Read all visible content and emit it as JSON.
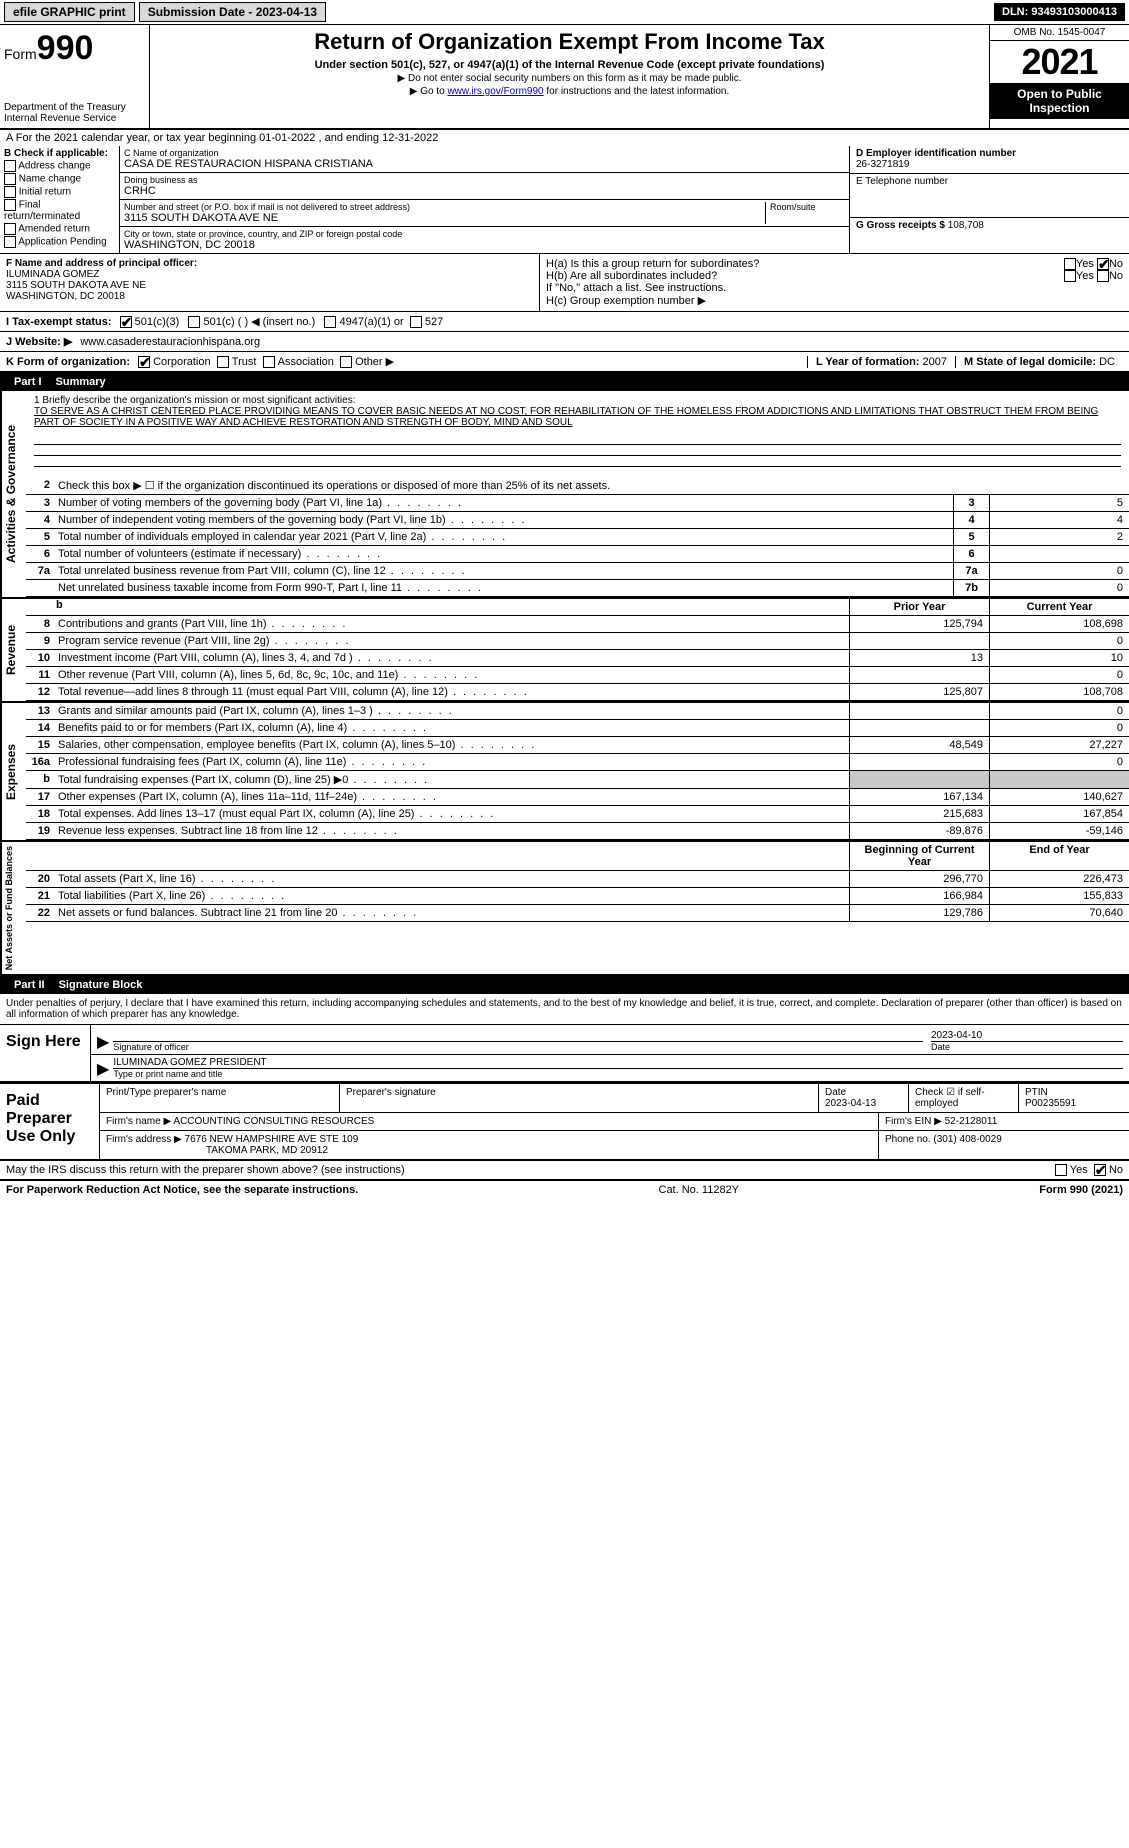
{
  "meta": {
    "type": "document",
    "title": "IRS Form 990 (2021)",
    "background_color": "#ffffff",
    "text_color": "#000000",
    "accent_black": "#000000",
    "link_color": "#0000cc",
    "grey_fill": "#c8c8c8",
    "button_grey": "#d8d8d8",
    "font_family": "Arial",
    "base_fontsize": 11
  },
  "topbar": {
    "efile": "efile GRAPHIC print",
    "submission_label": "Submission Date - 2023-04-13",
    "dln": "DLN: 93493103000413"
  },
  "header": {
    "form_label": "Form",
    "form_number": "990",
    "dept": "Department of the Treasury",
    "irs": "Internal Revenue Service",
    "title": "Return of Organization Exempt From Income Tax",
    "subtitle": "Under section 501(c), 527, or 4947(a)(1) of the Internal Revenue Code (except private foundations)",
    "note_ssn": "▶ Do not enter social security numbers on this form as it may be made public.",
    "note_link_prefix": "▶ Go to ",
    "note_link": "www.irs.gov/Form990",
    "note_link_suffix": " for instructions and the latest information.",
    "omb": "OMB No. 1545-0047",
    "year": "2021",
    "open": "Open to Public Inspection"
  },
  "period": {
    "line": "A For the 2021 calendar year, or tax year beginning 01-01-2022   , and ending 12-31-2022"
  },
  "box_b": {
    "label": "B Check if applicable:",
    "items": [
      "Address change",
      "Name change",
      "Initial return",
      "Final return/terminated",
      "Amended return",
      "Application Pending"
    ]
  },
  "box_c": {
    "name_label": "C Name of organization",
    "name": "CASA DE RESTAURACION HISPANA CRISTIANA",
    "dba_label": "Doing business as",
    "dba": "CRHC",
    "street_label": "Number and street (or P.O. box if mail is not delivered to street address)",
    "room_label": "Room/suite",
    "street": "3115 SOUTH DAKOTA AVE NE",
    "city_label": "City or town, state or province, country, and ZIP or foreign postal code",
    "city": "WASHINGTON, DC  20018"
  },
  "box_d": {
    "label": "D Employer identification number",
    "value": "26-3271819"
  },
  "box_e": {
    "label": "E Telephone number",
    "value": ""
  },
  "box_g": {
    "label": "G Gross receipts $",
    "value": "108,708"
  },
  "box_f": {
    "label": "F  Name and address of principal officer:",
    "name": "ILUMINADA GOMEZ",
    "addr1": "3115 SOUTH DAKOTA AVE NE",
    "addr2": "WASHINGTON, DC  20018"
  },
  "box_h": {
    "a_label": "H(a)  Is this a group return for subordinates?",
    "a_yes": "Yes",
    "a_no": "No",
    "b_label": "H(b)  Are all subordinates included?",
    "b_yes": "Yes",
    "b_no": "No",
    "b_note": "If \"No,\" attach a list. See instructions.",
    "c_label": "H(c)  Group exemption number ▶"
  },
  "row_i": {
    "label": "I  Tax-exempt status:",
    "opt1": "501(c)(3)",
    "opt2": "501(c) (   ) ◀ (insert no.)",
    "opt3": "4947(a)(1) or",
    "opt4": "527"
  },
  "row_j": {
    "label": "J  Website: ▶",
    "value": "www.casaderestauracionhispana.org"
  },
  "row_k": {
    "label": "K Form of organization:",
    "opts": [
      "Corporation",
      "Trust",
      "Association",
      "Other ▶"
    ],
    "checked": 0
  },
  "row_l": {
    "label": "L Year of formation:",
    "value": "2007"
  },
  "row_m": {
    "label": "M State of legal domicile:",
    "value": "DC"
  },
  "parts": {
    "p1": "Part I",
    "p1t": "Summary",
    "p2": "Part II",
    "p2t": "Signature Block"
  },
  "mission": {
    "label": "1  Briefly describe the organization's mission or most significant activities:",
    "text": "TO SERVE AS A CHRIST CENTERED PLACE PROVIDING MEANS TO COVER BASIC NEEDS AT NO COST, FOR REHABILITATION OF THE HOMELESS FROM ADDICTIONS AND LIMITATIONS THAT OBSTRUCT THEM FROM BEING PART OF SOCIETY IN A POSITIVE WAY AND ACHIEVE RESTORATION AND STRENGTH OF BODY, MIND AND SOUL"
  },
  "governance": {
    "l2": "Check this box ▶ ☐ if the organization discontinued its operations or disposed of more than 25% of its net assets.",
    "rows": [
      {
        "n": "3",
        "t": "Number of voting members of the governing body (Part VI, line 1a)",
        "b": "3",
        "v": "5"
      },
      {
        "n": "4",
        "t": "Number of independent voting members of the governing body (Part VI, line 1b)",
        "b": "4",
        "v": "4"
      },
      {
        "n": "5",
        "t": "Total number of individuals employed in calendar year 2021 (Part V, line 2a)",
        "b": "5",
        "v": "2"
      },
      {
        "n": "6",
        "t": "Total number of volunteers (estimate if necessary)",
        "b": "6",
        "v": ""
      },
      {
        "n": "7a",
        "t": "Total unrelated business revenue from Part VIII, column (C), line 12",
        "b": "7a",
        "v": "0"
      },
      {
        "n": "",
        "t": "Net unrelated business taxable income from Form 990-T, Part I, line 11",
        "b": "7b",
        "v": "0"
      }
    ]
  },
  "col_headers": {
    "spacer": "b",
    "prior": "Prior Year",
    "current": "Current Year",
    "boy": "Beginning of Current Year",
    "eoy": "End of Year"
  },
  "revenue": [
    {
      "n": "8",
      "t": "Contributions and grants (Part VIII, line 1h)",
      "p": "125,794",
      "c": "108,698"
    },
    {
      "n": "9",
      "t": "Program service revenue (Part VIII, line 2g)",
      "p": "",
      "c": "0"
    },
    {
      "n": "10",
      "t": "Investment income (Part VIII, column (A), lines 3, 4, and 7d )",
      "p": "13",
      "c": "10"
    },
    {
      "n": "11",
      "t": "Other revenue (Part VIII, column (A), lines 5, 6d, 8c, 9c, 10c, and 11e)",
      "p": "",
      "c": "0"
    },
    {
      "n": "12",
      "t": "Total revenue—add lines 8 through 11 (must equal Part VIII, column (A), line 12)",
      "p": "125,807",
      "c": "108,708"
    }
  ],
  "expenses": [
    {
      "n": "13",
      "t": "Grants and similar amounts paid (Part IX, column (A), lines 1–3 )",
      "p": "",
      "c": "0"
    },
    {
      "n": "14",
      "t": "Benefits paid to or for members (Part IX, column (A), line 4)",
      "p": "",
      "c": "0"
    },
    {
      "n": "15",
      "t": "Salaries, other compensation, employee benefits (Part IX, column (A), lines 5–10)",
      "p": "48,549",
      "c": "27,227"
    },
    {
      "n": "16a",
      "t": "Professional fundraising fees (Part IX, column (A), line 11e)",
      "p": "",
      "c": "0"
    },
    {
      "n": "b",
      "t": "Total fundraising expenses (Part IX, column (D), line 25) ▶0",
      "p": "grey",
      "c": "grey"
    },
    {
      "n": "17",
      "t": "Other expenses (Part IX, column (A), lines 11a–11d, 11f–24e)",
      "p": "167,134",
      "c": "140,627"
    },
    {
      "n": "18",
      "t": "Total expenses. Add lines 13–17 (must equal Part IX, column (A), line 25)",
      "p": "215,683",
      "c": "167,854"
    },
    {
      "n": "19",
      "t": "Revenue less expenses. Subtract line 18 from line 12",
      "p": "-89,876",
      "c": "-59,146"
    }
  ],
  "netassets": [
    {
      "n": "20",
      "t": "Total assets (Part X, line 16)",
      "p": "296,770",
      "c": "226,473"
    },
    {
      "n": "21",
      "t": "Total liabilities (Part X, line 26)",
      "p": "166,984",
      "c": "155,833"
    },
    {
      "n": "22",
      "t": "Net assets or fund balances. Subtract line 21 from line 20",
      "p": "129,786",
      "c": "70,640"
    }
  ],
  "side_labels": {
    "gov": "Activities & Governance",
    "rev": "Revenue",
    "exp": "Expenses",
    "net": "Net Assets or Fund Balances"
  },
  "sig_declare": "Under penalties of perjury, I declare that I have examined this return, including accompanying schedules and statements, and to the best of my knowledge and belief, it is true, correct, and complete. Declaration of preparer (other than officer) is based on all information of which preparer has any knowledge.",
  "sign": {
    "here": "Sign Here",
    "sig_label": "Signature of officer",
    "date_label": "Date",
    "date": "2023-04-10",
    "name": "ILUMINADA GOMEZ  PRESIDENT",
    "name_label": "Type or print name and title"
  },
  "paid": {
    "label": "Paid Preparer Use Only",
    "h_print": "Print/Type preparer's name",
    "h_sig": "Preparer's signature",
    "h_date": "Date",
    "date_val": "2023-04-13",
    "h_check": "Check ☑ if self-employed",
    "h_ptin": "PTIN",
    "ptin_val": "P00235591",
    "firm_name_l": "Firm's name    ▶",
    "firm_name": "ACCOUNTING CONSULTING RESOURCES",
    "firm_ein_l": "Firm's EIN ▶",
    "firm_ein": "52-2128011",
    "firm_addr_l": "Firm's address ▶",
    "firm_addr1": "7676 NEW HAMPSHIRE AVE STE 109",
    "firm_addr2": "TAKOMA PARK, MD  20912",
    "phone_l": "Phone no.",
    "phone": "(301) 408-0029"
  },
  "discuss": {
    "q": "May the IRS discuss this return with the preparer shown above? (see instructions)",
    "yes": "Yes",
    "no": "No"
  },
  "footer": {
    "left": "For Paperwork Reduction Act Notice, see the separate instructions.",
    "mid": "Cat. No. 11282Y",
    "right": "Form 990 (2021)"
  }
}
